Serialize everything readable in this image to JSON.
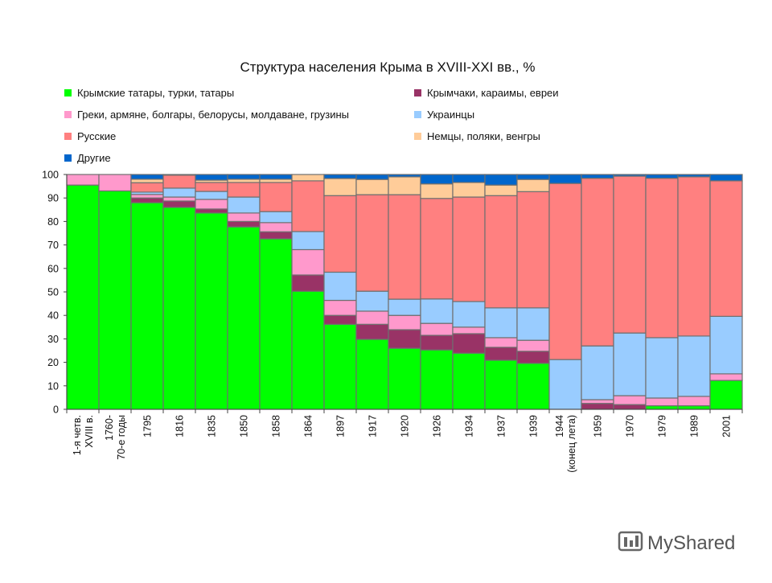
{
  "chart_data": {
    "type": "bar",
    "stacked": true,
    "title": "Структура населения Крыма в XVIII-XXI вв., %",
    "xlabel": "",
    "ylabel": "",
    "ylim": [
      0,
      100
    ],
    "yticks": [
      0,
      10,
      20,
      30,
      40,
      50,
      60,
      70,
      80,
      90,
      100
    ],
    "grid": false,
    "legend_placement": "top",
    "categories": [
      [
        "1-я четв.",
        "XVIII в."
      ],
      [
        "1760-",
        "70-е годы"
      ],
      [
        "1795"
      ],
      [
        "1816"
      ],
      [
        "1835"
      ],
      [
        "1850"
      ],
      [
        "1858"
      ],
      [
        "1864"
      ],
      [
        "1897"
      ],
      [
        "1917"
      ],
      [
        "1920"
      ],
      [
        "1926"
      ],
      [
        "1934"
      ],
      [
        "1937"
      ],
      [
        "1939"
      ],
      [
        "1944",
        "(конец лета)"
      ],
      [
        "1959"
      ],
      [
        "1970"
      ],
      [
        "1979"
      ],
      [
        "1989"
      ],
      [
        "2001"
      ]
    ],
    "series": [
      {
        "name": "Крымские татары, турки, татары",
        "color": "#00ff00",
        "values": [
          95.5,
          93,
          88,
          86,
          83.6,
          77.7,
          72.6,
          50.3,
          36.2,
          29.8,
          26,
          25.3,
          23.9,
          20.9,
          19.6,
          0,
          0,
          0,
          1.5,
          1.5,
          12.3
        ]
      },
      {
        "name": "Крымчаки, караимы, евреи",
        "color": "#993366",
        "values": [
          0,
          0,
          2,
          2.7,
          1.7,
          2.3,
          3,
          6.9,
          3.8,
          6.4,
          7.9,
          6.2,
          8.3,
          5.5,
          5.1,
          0,
          2.5,
          2,
          0,
          0,
          0
        ]
      },
      {
        "name": "Греки, армяне, болгары, белорусы, молдаване, грузины",
        "color": "#ff99cc",
        "values": [
          4.5,
          7,
          1.5,
          1.7,
          4.1,
          3.6,
          3.9,
          10.8,
          6.4,
          5.6,
          6.1,
          5.1,
          2.8,
          4.1,
          4.7,
          0,
          1.6,
          3.8,
          3.3,
          4,
          2.8
        ]
      },
      {
        "name": "Украинцы",
        "color": "#99ccff",
        "values": [
          0,
          0,
          1,
          3.8,
          3.4,
          6.8,
          4.7,
          7.7,
          12,
          8.5,
          6.9,
          10.4,
          10.9,
          12.7,
          13.8,
          21.2,
          22.9,
          26.7,
          25.7,
          25.7,
          24.5
        ]
      },
      {
        "name": "Русские",
        "color": "#ff8080",
        "values": [
          0,
          0,
          4,
          5.5,
          3.8,
          6.2,
          12.4,
          21.6,
          32.6,
          41.1,
          44.5,
          42.8,
          44.5,
          47.8,
          49.5,
          75,
          71.4,
          66.8,
          67.9,
          67.8,
          57.7
        ]
      },
      {
        "name": "Немцы, поляки, венгры",
        "color": "#ffcc99",
        "values": [
          0,
          0,
          1.5,
          0.3,
          1,
          1.4,
          1.4,
          2.7,
          7.3,
          6.5,
          7.6,
          6.2,
          6.2,
          4.5,
          5.2,
          0,
          0,
          0,
          0,
          0,
          0
        ]
      },
      {
        "name": "Другие",
        "color": "#0066cc",
        "values": [
          0,
          0,
          2,
          0,
          2.4,
          2,
          2,
          0,
          1.7,
          2.1,
          1,
          4,
          3.4,
          4.5,
          2.1,
          3.8,
          1.6,
          0.7,
          1.6,
          1,
          2.7
        ]
      }
    ]
  },
  "watermark": {
    "text": "MyShared"
  }
}
